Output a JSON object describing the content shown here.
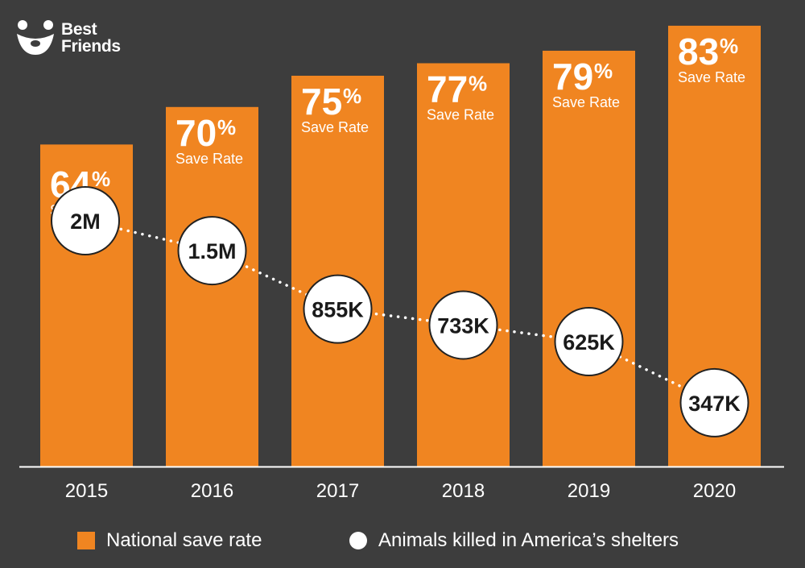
{
  "brand": {
    "line1": "Best",
    "line2": "Friends",
    "logo_icon": "dog-face-icon"
  },
  "colors": {
    "background": "#3d3d3d",
    "bar": "#f08521",
    "bubble_fill": "#ffffff",
    "bubble_stroke": "#222222",
    "text_light": "#ffffff",
    "text_dark": "#1a1a1a"
  },
  "chart_data": {
    "type": "bar",
    "categories": [
      "2015",
      "2016",
      "2017",
      "2018",
      "2019",
      "2020"
    ],
    "series": [
      {
        "name": "National save rate",
        "type": "bar",
        "values": [
          64,
          70,
          75,
          77,
          79,
          83
        ],
        "labels": [
          "64",
          "70",
          "75",
          "77",
          "79",
          "83"
        ],
        "unit": "%",
        "sublabel": "Save Rate"
      },
      {
        "name": "Animals killed in America’s shelters",
        "type": "line",
        "values": [
          2000000,
          1500000,
          855000,
          733000,
          625000,
          347000
        ],
        "labels": [
          "2M",
          "1.5M",
          "855K",
          "733K",
          "625K",
          "347K"
        ]
      }
    ],
    "title": "",
    "xlabel": "",
    "ylabel": "",
    "legend": "bottom"
  }
}
